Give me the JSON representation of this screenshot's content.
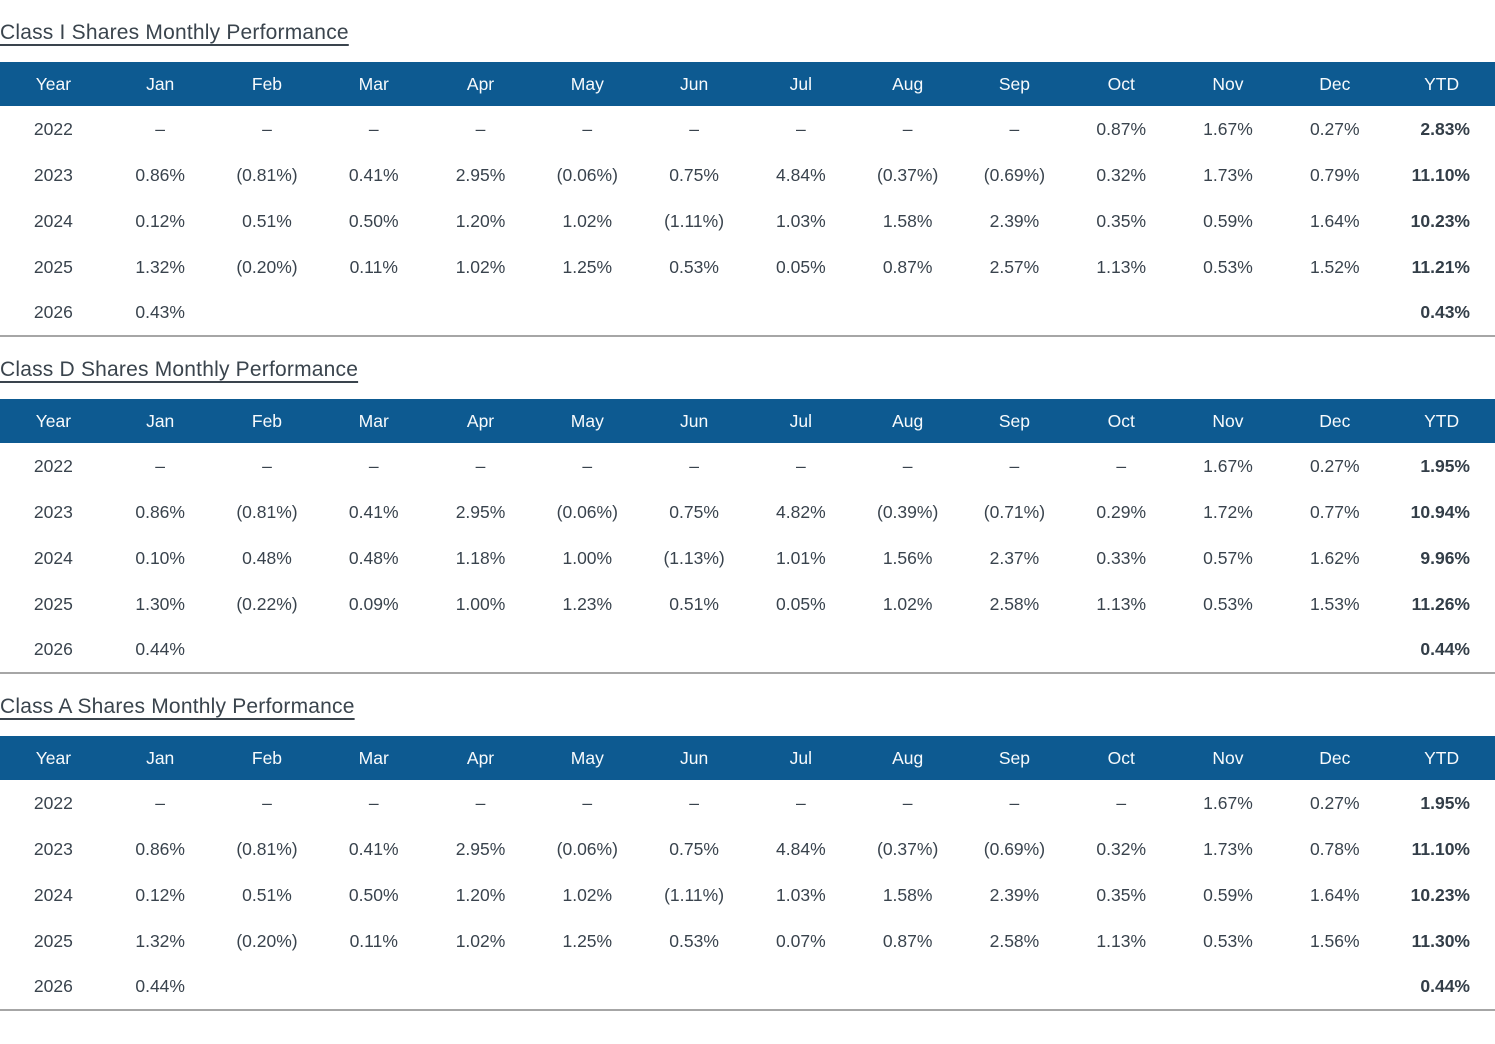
{
  "columns": [
    "Year",
    "Jan",
    "Feb",
    "Mar",
    "Apr",
    "May",
    "Jun",
    "Jul",
    "Aug",
    "Sep",
    "Oct",
    "Nov",
    "Dec",
    "YTD"
  ],
  "colors": {
    "header_background": "#0D5A91",
    "header_text": "#F7FAFC",
    "body_text": "#39434D",
    "table_bottom_border": "#A6A6A6"
  },
  "sections": [
    {
      "id": "class-i",
      "title": "Class I Shares Monthly Performance",
      "rows": [
        [
          "2022",
          "–",
          "–",
          "–",
          "–",
          "–",
          "–",
          "–",
          "–",
          "–",
          "0.87%",
          "1.67%",
          "0.27%",
          "2.83%"
        ],
        [
          "2023",
          "0.86%",
          "(0.81%)",
          "0.41%",
          "2.95%",
          "(0.06%)",
          "0.75%",
          "4.84%",
          "(0.37%)",
          "(0.69%)",
          "0.32%",
          "1.73%",
          "0.79%",
          "11.10%"
        ],
        [
          "2024",
          "0.12%",
          "0.51%",
          "0.50%",
          "1.20%",
          "1.02%",
          "(1.11%)",
          "1.03%",
          "1.58%",
          "2.39%",
          "0.35%",
          "0.59%",
          "1.64%",
          "10.23%"
        ],
        [
          "2025",
          "1.32%",
          "(0.20%)",
          "0.11%",
          "1.02%",
          "1.25%",
          "0.53%",
          "0.05%",
          "0.87%",
          "2.57%",
          "1.13%",
          "0.53%",
          "1.52%",
          "11.21%"
        ],
        [
          "2026",
          "0.43%",
          "",
          "",
          "",
          "",
          "",
          "",
          "",
          "",
          "",
          "",
          "",
          "0.43%"
        ]
      ]
    },
    {
      "id": "class-d",
      "title": "Class D Shares Monthly Performance",
      "rows": [
        [
          "2022",
          "–",
          "–",
          "–",
          "–",
          "–",
          "–",
          "–",
          "–",
          "–",
          "–",
          "1.67%",
          "0.27%",
          "1.95%"
        ],
        [
          "2023",
          "0.86%",
          "(0.81%)",
          "0.41%",
          "2.95%",
          "(0.06%)",
          "0.75%",
          "4.82%",
          "(0.39%)",
          "(0.71%)",
          "0.29%",
          "1.72%",
          "0.77%",
          "10.94%"
        ],
        [
          "2024",
          "0.10%",
          "0.48%",
          "0.48%",
          "1.18%",
          "1.00%",
          "(1.13%)",
          "1.01%",
          "1.56%",
          "2.37%",
          "0.33%",
          "0.57%",
          "1.62%",
          "9.96%"
        ],
        [
          "2025",
          "1.30%",
          "(0.22%)",
          "0.09%",
          "1.00%",
          "1.23%",
          "0.51%",
          "0.05%",
          "1.02%",
          "2.58%",
          "1.13%",
          "0.53%",
          "1.53%",
          "11.26%"
        ],
        [
          "2026",
          "0.44%",
          "",
          "",
          "",
          "",
          "",
          "",
          "",
          "",
          "",
          "",
          "",
          "0.44%"
        ]
      ]
    },
    {
      "id": "class-a",
      "title": "Class A Shares Monthly Performance",
      "rows": [
        [
          "2022",
          "–",
          "–",
          "–",
          "–",
          "–",
          "–",
          "–",
          "–",
          "–",
          "–",
          "1.67%",
          "0.27%",
          "1.95%"
        ],
        [
          "2023",
          "0.86%",
          "(0.81%)",
          "0.41%",
          "2.95%",
          "(0.06%)",
          "0.75%",
          "4.84%",
          "(0.37%)",
          "(0.69%)",
          "0.32%",
          "1.73%",
          "0.78%",
          "11.10%"
        ],
        [
          "2024",
          "0.12%",
          "0.51%",
          "0.50%",
          "1.20%",
          "1.02%",
          "(1.11%)",
          "1.03%",
          "1.58%",
          "2.39%",
          "0.35%",
          "0.59%",
          "1.64%",
          "10.23%"
        ],
        [
          "2025",
          "1.32%",
          "(0.20%)",
          "0.11%",
          "1.02%",
          "1.25%",
          "0.53%",
          "0.07%",
          "0.87%",
          "2.58%",
          "1.13%",
          "0.53%",
          "1.56%",
          "11.30%"
        ],
        [
          "2026",
          "0.44%",
          "",
          "",
          "",
          "",
          "",
          "",
          "",
          "",
          "",
          "",
          "",
          "0.44%"
        ]
      ]
    }
  ]
}
